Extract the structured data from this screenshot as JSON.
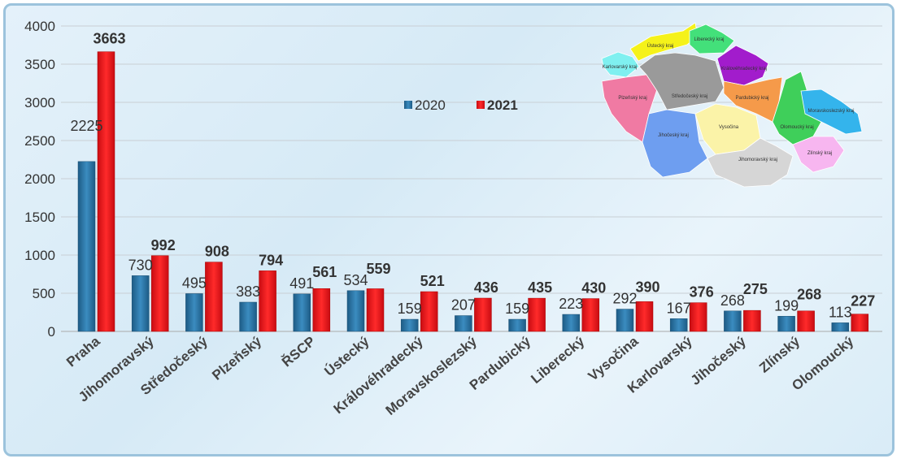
{
  "chart_data": {
    "type": "bar",
    "title": "",
    "xlabel": "",
    "ylabel": "",
    "ylim": [
      0,
      4000
    ],
    "yticks": [
      0,
      500,
      1000,
      1500,
      2000,
      2500,
      3000,
      3500,
      4000
    ],
    "grid": true,
    "legend_position": "top-center",
    "categories": [
      "Praha",
      "Jihomoravský",
      "Středočeský",
      "Plzeňský",
      "ŘSCP",
      "Ústecký",
      "Královéhradecký",
      "Moravskoslezský",
      "Pardubický",
      "Liberecký",
      "Vysočina",
      "Karlovarský",
      "Jihočeský",
      "Zlínský",
      "Olomoucký"
    ],
    "series": [
      {
        "name": "2020",
        "color": "#2e78a8",
        "values": [
          2225,
          730,
          495,
          383,
          491,
          534,
          159,
          207,
          159,
          223,
          292,
          167,
          268,
          199,
          113
        ]
      },
      {
        "name": "2021",
        "color": "#e8141b",
        "values": [
          3663,
          992,
          908,
          794,
          561,
          559,
          521,
          436,
          435,
          430,
          390,
          376,
          275,
          268,
          227
        ]
      }
    ]
  },
  "map": {
    "regions": [
      {
        "name": "Ústecký kraj",
        "color": "#f5f21a"
      },
      {
        "name": "Liberecký kraj",
        "color": "#43e07a"
      },
      {
        "name": "Karlovarský kraj",
        "color": "#7ff0f0"
      },
      {
        "name": "Plzeňský kraj",
        "color": "#f07aa3"
      },
      {
        "name": "Středočeský kraj",
        "color": "#9a9a9a"
      },
      {
        "name": "Královéhradecký kraj",
        "color": "#a21ccc"
      },
      {
        "name": "Pardubický kraj",
        "color": "#f59a4a"
      },
      {
        "name": "Jihočeský kraj",
        "color": "#6e9ef0"
      },
      {
        "name": "Vysočina",
        "color": "#fbf3a8"
      },
      {
        "name": "Jihomoravský kraj",
        "color": "#d6d6d6"
      },
      {
        "name": "Olomoucký kraj",
        "color": "#3fcf5a"
      },
      {
        "name": "Moravskoslezský kraj",
        "color": "#34b4ec"
      },
      {
        "name": "Zlínský kraj",
        "color": "#f7b6f0"
      }
    ]
  }
}
